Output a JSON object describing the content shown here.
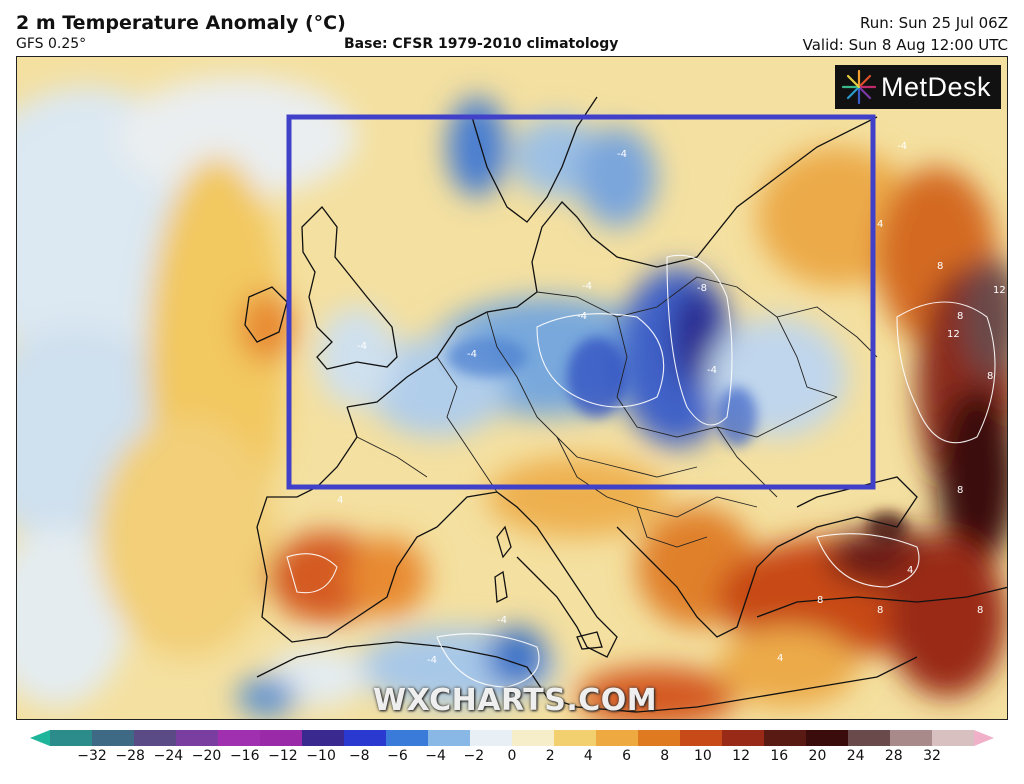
{
  "header": {
    "title": "2 m Temperature Anomaly (°C)",
    "model": "GFS 0.25°",
    "base": "Base: CFSR 1979-2010 climatology",
    "run": "Run: Sun 25 Jul 06Z",
    "valid": "Valid: Sun 8 Aug 12:00 UTC"
  },
  "logo": {
    "text": "MetDesk",
    "icon": "metdesk-star-icon"
  },
  "watermark": "WXCHARTS.COM",
  "highlight_box": {
    "color": "#4040c8"
  },
  "contour_labels": [
    "-4",
    "-4",
    "-4",
    "-4",
    "-4",
    "-4",
    "-8",
    "-4",
    "4",
    "8",
    "8",
    "12",
    "12",
    "8",
    "8",
    "4",
    "8",
    "4",
    "8",
    "8",
    "-4",
    "-4",
    "4"
  ],
  "colorbar": {
    "ticks": [
      "−32",
      "−28",
      "−24",
      "−20",
      "−16",
      "−12",
      "−10",
      "−8",
      "−6",
      "−4",
      "−2",
      "0",
      "2",
      "4",
      "6",
      "8",
      "10",
      "12",
      "16",
      "20",
      "24",
      "28",
      "32"
    ],
    "colors": [
      "#1fb59a",
      "#2c8c8c",
      "#3f6a86",
      "#5a4a86",
      "#7a3ea0",
      "#a030b0",
      "#9a2aa8",
      "#3a2a90",
      "#2a3ad0",
      "#3a7ad8",
      "#8ab8e6",
      "#e8f0f6",
      "#f6eec8",
      "#f2d070",
      "#eeaa40",
      "#e07a20",
      "#c84a18",
      "#9a2a18",
      "#5a1a14",
      "#3a0c0c",
      "#6a4a4a",
      "#a88a8a",
      "#d8c0c0",
      "#f0b0c8"
    ]
  }
}
